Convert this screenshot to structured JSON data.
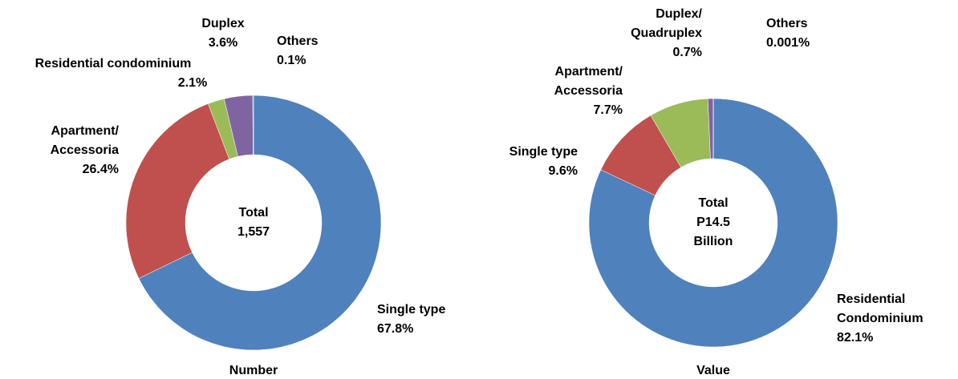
{
  "chart_data": [
    {
      "type": "donut",
      "title": "Number",
      "center_label": [
        "Total",
        "1,557"
      ],
      "categories": [
        [
          "Single type"
        ],
        [
          "Apartment/",
          "Accessoria"
        ],
        [
          "Residential condominium"
        ],
        [
          "Duplex"
        ],
        [
          "Others"
        ]
      ],
      "values": [
        67.8,
        26.4,
        2.1,
        3.6,
        0.1
      ],
      "value_labels": [
        "67.8%",
        "26.4%",
        "2.1%",
        "3.6%",
        "0.1%"
      ],
      "colors": [
        "#4f81bd",
        "#c0504d",
        "#9bbb59",
        "#8064a2",
        "#4bacc6"
      ]
    },
    {
      "type": "donut",
      "title": "Value",
      "center_label": [
        "Total",
        "P14.5",
        "Billion"
      ],
      "categories": [
        [
          "Residential",
          "Condominium"
        ],
        [
          "Single type"
        ],
        [
          "Apartment/",
          "Accessoria"
        ],
        [
          "Duplex/",
          "Quadruplex"
        ],
        [
          "Others"
        ]
      ],
      "values": [
        82.1,
        9.6,
        7.7,
        0.7,
        0.001
      ],
      "value_labels": [
        "82.1%",
        "9.6%",
        "7.7%",
        "0.7%",
        "0.001%"
      ],
      "colors": [
        "#4f81bd",
        "#c0504d",
        "#9bbb59",
        "#8064a2",
        "#4bacc6"
      ]
    }
  ]
}
